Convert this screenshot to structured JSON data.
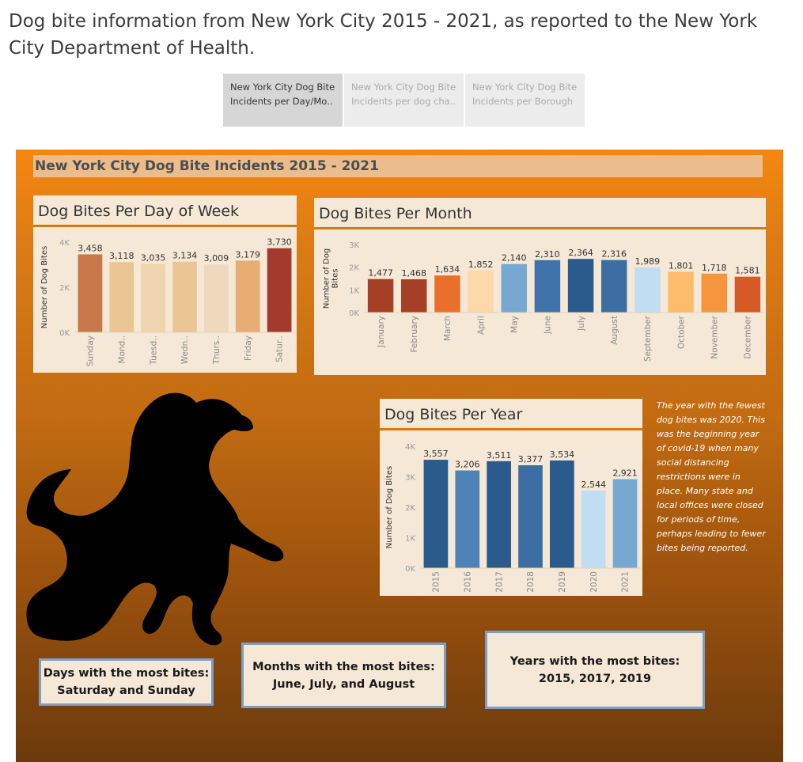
{
  "page": {
    "title": "Dog bite information from New York City 2015 - 2021, as reported to the New York City Department of Health."
  },
  "tabs": [
    {
      "label_line1": "New York City Dog Bite",
      "label_line2": "Incidents per Day/Mo..",
      "active": true
    },
    {
      "label_line1": "New York City Dog Bite",
      "label_line2": "Incidents per dog cha..",
      "active": false
    },
    {
      "label_line1": "New York City Dog Bite",
      "label_line2": "Incidents per Borough",
      "active": false
    }
  ],
  "dashboard": {
    "title": "New York City Dog Bite Incidents 2015 - 2021",
    "note": "The year with the fewest dog bites was 2020. This was the beginning year of covid-19 when many social distancing restrictions were in place. Many state and local offices were closed for periods of time, perhaps leading to fewer bites being reported.",
    "callouts": {
      "days": {
        "line1": "Days with the most bites:",
        "line2": "Saturday and Sunday"
      },
      "months": {
        "line1": "Months with the most bites:",
        "line2": "June, July, and August"
      },
      "years": {
        "line1": "Years with the most bites:",
        "line2": "2015, 2017, 2019"
      }
    }
  },
  "chart_data": [
    {
      "type": "bar",
      "title": "Dog Bites Per Day of Week",
      "ylabel": "Number of Dog Bites",
      "xlabel": "",
      "ylim": [
        0,
        4000
      ],
      "yticks": [
        0,
        2000,
        4000
      ],
      "ytick_labels": [
        "0K",
        "2K",
        "4K"
      ],
      "categories": [
        "Sunday",
        "Mond..",
        "Tuesd..",
        "Wedn..",
        "Thurs..",
        "Friday",
        "Satur.."
      ],
      "values": [
        3458,
        3118,
        3035,
        3134,
        3009,
        3179,
        3730
      ],
      "value_labels": [
        "3,458",
        "3,118",
        "3,035",
        "3,134",
        "3,009",
        "3,179",
        "3,730"
      ],
      "colors": [
        "#c8774b",
        "#ebc594",
        "#efd4b0",
        "#ebc594",
        "#efd9bc",
        "#e8ad73",
        "#a33a2d"
      ]
    },
    {
      "type": "bar",
      "title": "Dog Bites Per Month",
      "ylabel": "Number of Dog Bites",
      "xlabel": "",
      "ylim": [
        0,
        3000
      ],
      "yticks": [
        0,
        1000,
        2000,
        3000
      ],
      "ytick_labels": [
        "0K",
        "1K",
        "2K",
        "3K"
      ],
      "categories": [
        "January",
        "February",
        "March",
        "April",
        "May",
        "June",
        "July",
        "August",
        "September",
        "October",
        "November",
        "December"
      ],
      "values": [
        1477,
        1468,
        1634,
        1852,
        2140,
        2310,
        2364,
        2316,
        1989,
        1801,
        1718,
        1581
      ],
      "value_labels": [
        "1,477",
        "1,468",
        "1,634",
        "1,852",
        "2,140",
        "2,310",
        "2,364",
        "2,316",
        "1,989",
        "1,801",
        "1,718",
        "1,581"
      ],
      "colors": [
        "#a53f25",
        "#a53f25",
        "#e8702a",
        "#fdd8a8",
        "#75a9d2",
        "#3f72aa",
        "#2b5b8c",
        "#3c6ea4",
        "#bfdef2",
        "#fdbb6c",
        "#f5953c",
        "#d55a25"
      ]
    },
    {
      "type": "bar",
      "title": "Dog Bites Per Year",
      "ylabel": "Number of Dog Bites",
      "xlabel": "",
      "ylim": [
        0,
        4000
      ],
      "yticks": [
        0,
        1000,
        2000,
        3000,
        4000
      ],
      "ytick_labels": [
        "0K",
        "1K",
        "2K",
        "3K",
        "4K"
      ],
      "categories": [
        "2015",
        "2016",
        "2017",
        "2018",
        "2019",
        "2020",
        "2021"
      ],
      "values": [
        3557,
        3206,
        3511,
        3377,
        3534,
        2544,
        2921
      ],
      "value_labels": [
        "3,557",
        "3,206",
        "3,511",
        "3,377",
        "3,534",
        "2,544",
        "2,921"
      ],
      "colors": [
        "#2b5b8c",
        "#4f83b7",
        "#2b5b8c",
        "#3c6ea4",
        "#2b5b8c",
        "#bfdef2",
        "#75a9d2"
      ]
    }
  ]
}
